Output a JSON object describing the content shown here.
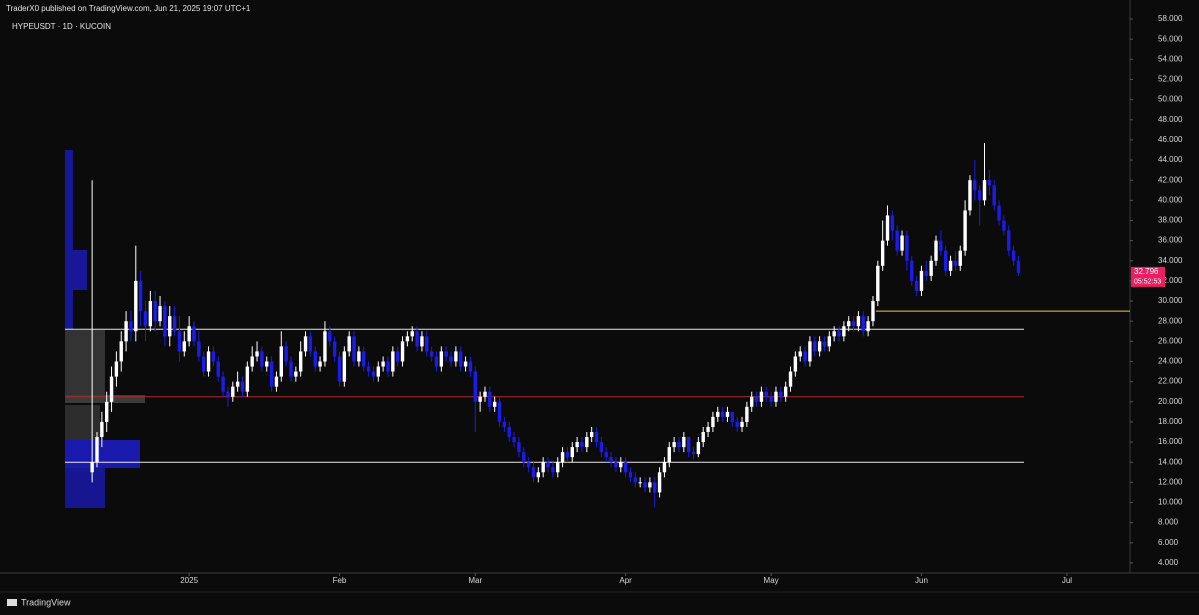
{
  "header": {
    "publisher": "TraderX0 published on TradingView.com, Jun 21, 2025 19:07 UTC+1"
  },
  "footer": {
    "brand": "TradingView"
  },
  "chart_data": {
    "type": "candlestick",
    "title": "HYPEUSDT · 1D · KUCOIN",
    "up_color": "#ffffff",
    "down_color": "#1c1ce8",
    "open": [
      13,
      14,
      16.5,
      18,
      20,
      22.5,
      24,
      26,
      28,
      27,
      32,
      29,
      27.5,
      30,
      28,
      29.5,
      26.5,
      28.5,
      27,
      25,
      26,
      27.5,
      26,
      24.5,
      23,
      25,
      24,
      22.5,
      21,
      20.5,
      21.5,
      22,
      21,
      23.5,
      24.5,
      25,
      23.5,
      24,
      21.5,
      22.5,
      25.5,
      24,
      22.5,
      23,
      25,
      26.5,
      25,
      23.5,
      24,
      27,
      26,
      24.5,
      22,
      25,
      26.5,
      24,
      25,
      23.5,
      23,
      22.5,
      23.5,
      24,
      23,
      25,
      24,
      26,
      26.5,
      27,
      25.5,
      26.5,
      25,
      24.5,
      23.5,
      25,
      24.5,
      24,
      25,
      23.5,
      24,
      23,
      20,
      20.5,
      21,
      19.5,
      20,
      18,
      17.5,
      16.5,
      16,
      15,
      14,
      13.5,
      12.5,
      13,
      14,
      13.5,
      13,
      14,
      15,
      14.5,
      15.5,
      16,
      15.5,
      16.5,
      17,
      16,
      15,
      14.5,
      14,
      13.5,
      14,
      13,
      12.5,
      12,
      12,
      11.5,
      12,
      11,
      13,
      14,
      15.5,
      16,
      15.5,
      16.5,
      15,
      14.8,
      16,
      17,
      17.5,
      18.5,
      19,
      18.5,
      19,
      18,
      17.5,
      18,
      19.5,
      20.5,
      20,
      21,
      20.5,
      20,
      21,
      20.5,
      21.5,
      23,
      24.5,
      25,
      24,
      26,
      25,
      26,
      25.5,
      26.5,
      27,
      26.5,
      27.5,
      28,
      27.5,
      28.5,
      27,
      28,
      30,
      33.5,
      36,
      38.5,
      37,
      35,
      36.5,
      34,
      32,
      31,
      33,
      32.5,
      34,
      36,
      35,
      33,
      34,
      33.5,
      35,
      39,
      42,
      41,
      40,
      42,
      41.5,
      39.5,
      38,
      37,
      35,
      34
    ],
    "high": [
      42,
      17,
      19,
      21,
      23.5,
      25,
      27,
      29,
      29,
      35.5,
      33,
      30,
      31,
      31,
      30.5,
      30,
      29.5,
      29.5,
      28.5,
      27,
      28.5,
      28,
      27,
      25,
      25.5,
      25.5,
      24.5,
      23,
      21.5,
      22,
      23,
      22.5,
      24,
      25.5,
      26,
      25.5,
      24.5,
      24.5,
      23,
      27,
      26,
      24.5,
      23.5,
      26,
      27,
      27,
      25.5,
      24.5,
      28,
      27.5,
      26.5,
      25,
      25.5,
      27,
      27,
      25.5,
      25.5,
      24,
      23.5,
      24,
      24.5,
      24.5,
      25.5,
      25.5,
      26.5,
      27,
      27.5,
      27.5,
      27,
      27,
      25.5,
      25,
      25.5,
      25.5,
      25,
      25.5,
      25.5,
      24.5,
      24.5,
      23.5,
      21,
      21.5,
      21.5,
      20.5,
      20.5,
      18.5,
      18,
      17,
      16.5,
      15.5,
      14.5,
      14,
      13.5,
      14.5,
      14.5,
      14,
      14.5,
      15.5,
      15.5,
      16,
      16.5,
      16.5,
      17,
      17.5,
      17.5,
      16.5,
      15.5,
      15,
      14.5,
      14.5,
      14.5,
      13.5,
      13,
      12.5,
      12.5,
      12.5,
      12.5,
      13.5,
      14.5,
      16,
      16.5,
      16.5,
      17,
      16.5,
      15.5,
      16.5,
      17.5,
      18,
      19,
      19.5,
      19.5,
      19.5,
      19,
      18.5,
      18.5,
      20,
      21,
      21,
      21.5,
      21.5,
      21,
      21.5,
      21.5,
      22,
      23.5,
      25,
      25.5,
      25.5,
      26.5,
      26.5,
      26.5,
      26.5,
      27,
      27.5,
      27.5,
      28,
      28.5,
      28.5,
      29,
      29,
      28.5,
      30.5,
      34,
      38,
      39.5,
      39,
      37.5,
      37,
      37,
      34.5,
      32.5,
      33.5,
      34,
      34.5,
      36.5,
      37,
      35.5,
      34.5,
      35,
      35.5,
      40,
      42.5,
      44,
      41.5,
      45.7,
      43,
      42,
      40,
      38.5,
      37.5,
      35.5,
      34.5
    ],
    "low": [
      12,
      13.5,
      15.5,
      17,
      19,
      21.5,
      23,
      25,
      26,
      26,
      27.5,
      26,
      27,
      27,
      27.5,
      25.5,
      25.5,
      26.5,
      24,
      24.5,
      25.5,
      25.5,
      24,
      22.5,
      22.5,
      23.5,
      22,
      20.5,
      19.5,
      20,
      21,
      20.5,
      20.5,
      23,
      24,
      23,
      23,
      21,
      21,
      22,
      23.5,
      22,
      22,
      22.5,
      24.5,
      24.5,
      23,
      23,
      23.5,
      25.5,
      24,
      21.5,
      21.5,
      24.5,
      23.5,
      23.5,
      23,
      22.5,
      22,
      22,
      23,
      22.5,
      22.5,
      23.5,
      23.5,
      25.5,
      26,
      25,
      25,
      24.5,
      24,
      23,
      23,
      24,
      23.5,
      23.5,
      23,
      23,
      22.5,
      17,
      19,
      20,
      19,
      19,
      17.5,
      17,
      16,
      15.5,
      14.5,
      13.5,
      13,
      12,
      12,
      12.5,
      13,
      12.5,
      12.5,
      13.5,
      14,
      14,
      15,
      15,
      15,
      16,
      15.5,
      14.5,
      14,
      13.5,
      13,
      13,
      12.5,
      12,
      11.5,
      11.5,
      11,
      11,
      9.5,
      10.5,
      12.5,
      13.5,
      15,
      15,
      15,
      14.5,
      14.3,
      14.5,
      15.5,
      16.5,
      17,
      18,
      18,
      18,
      17.5,
      17,
      17,
      17.5,
      19,
      19.5,
      19.5,
      20,
      19.5,
      19.5,
      20,
      20,
      21,
      22.5,
      24,
      23.5,
      23.5,
      24.5,
      24.5,
      25,
      25,
      26,
      26,
      26,
      27,
      27,
      27,
      26.5,
      26.5,
      27.5,
      29.5,
      33,
      35.5,
      36,
      34.5,
      34.5,
      33,
      31.5,
      30.5,
      30.5,
      32,
      32,
      33.5,
      34.5,
      32.5,
      32.5,
      33,
      33,
      34.5,
      38.5,
      40,
      37.5,
      39.5,
      40.5,
      39,
      37.5,
      36.5,
      34.5,
      33.5,
      32.5
    ],
    "close": [
      14,
      16.5,
      18,
      20,
      22.5,
      24,
      26,
      28,
      27,
      32,
      29,
      27.5,
      30,
      28,
      29.5,
      26.5,
      28.5,
      27,
      25,
      26,
      27.5,
      26,
      24.5,
      23,
      25,
      24,
      22.5,
      21,
      20.5,
      21.5,
      22,
      21,
      23.5,
      24.5,
      25,
      23.5,
      24,
      21.5,
      22.5,
      25.5,
      24,
      22.5,
      23,
      25,
      26.5,
      25,
      23.5,
      24,
      27,
      26,
      24.5,
      22,
      25,
      26.5,
      24,
      25,
      23.5,
      23,
      22.5,
      23.5,
      24,
      23,
      25,
      24,
      26,
      26.5,
      27,
      25.5,
      26.5,
      25,
      24.5,
      23.5,
      25,
      24.5,
      24,
      25,
      23.5,
      24,
      23,
      20,
      20.5,
      21,
      19.5,
      20,
      18,
      17.5,
      16.5,
      16,
      15,
      14,
      13.5,
      12.5,
      13,
      14,
      13.5,
      13,
      14,
      15,
      14.5,
      15.5,
      16,
      15.5,
      16.5,
      17,
      16,
      15,
      14.5,
      14,
      13.5,
      14,
      13,
      12.5,
      12,
      12,
      11.5,
      12,
      11,
      13,
      14,
      15.5,
      16,
      15.5,
      16.5,
      15,
      14.8,
      16,
      17,
      17.5,
      18.5,
      19,
      18.5,
      19,
      18,
      17.5,
      18,
      19.5,
      20.5,
      20,
      21,
      20.5,
      20,
      21,
      20.5,
      21.5,
      23,
      24.5,
      25,
      24,
      26,
      25,
      26,
      25.5,
      26.5,
      27,
      26.5,
      27.5,
      28,
      27.5,
      28.5,
      27,
      28,
      30,
      33.5,
      36,
      38.5,
      37,
      35,
      36.5,
      34,
      32,
      31,
      33,
      32.5,
      34,
      36,
      35,
      33,
      34,
      33.5,
      35,
      39,
      42,
      41,
      40,
      42,
      41.5,
      39.5,
      38,
      37,
      35,
      34,
      32.796
    ],
    "last_price": "32.796",
    "countdown": "05:52:53",
    "last_price_color": "#e91e63",
    "levels": [
      {
        "value": 27.2,
        "color": "#e8e8e8"
      },
      {
        "value": 29,
        "color": "#f5c451"
      },
      {
        "value": 20.5,
        "color": "#b02a2a"
      },
      {
        "value": 14,
        "color": "#e8e8e8"
      }
    ],
    "xlim": [
      -19,
      214
    ],
    "xticks": [
      {
        "value": 20,
        "label": "2025"
      },
      {
        "value": 51,
        "label": "Feb"
      },
      {
        "value": 79,
        "label": "Mar"
      },
      {
        "value": 110,
        "label": "Apr"
      },
      {
        "value": 140,
        "label": "May"
      },
      {
        "value": 171,
        "label": "Jun"
      },
      {
        "value": 201,
        "label": "Jul"
      }
    ],
    "ylim": [
      3,
      58.6
    ],
    "yticks": [
      {
        "value": 4,
        "label": "4.000"
      },
      {
        "value": 6,
        "label": "6.000"
      },
      {
        "value": 8,
        "label": "8.000"
      },
      {
        "value": 10,
        "label": "10.000"
      },
      {
        "value": 12,
        "label": "12.000"
      },
      {
        "value": 14,
        "label": "14.000"
      },
      {
        "value": 16,
        "label": "16.000"
      },
      {
        "value": 18,
        "label": "18.000"
      },
      {
        "value": 20,
        "label": "20.000"
      },
      {
        "value": 22,
        "label": "22.000"
      },
      {
        "value": 24,
        "label": "24.000"
      },
      {
        "value": 26,
        "label": "26.000"
      },
      {
        "value": 28,
        "label": "28.000"
      },
      {
        "value": 30,
        "label": "30.000"
      },
      {
        "value": 32,
        "label": "32.000"
      },
      {
        "value": 34,
        "label": "34.000"
      },
      {
        "value": 36,
        "label": "36.000"
      },
      {
        "value": 38,
        "label": "38.000"
      },
      {
        "value": 40,
        "label": "40.000"
      },
      {
        "value": 42,
        "label": "42.000"
      },
      {
        "value": 44,
        "label": "44.000"
      },
      {
        "value": 46,
        "label": "46.000"
      },
      {
        "value": 48,
        "label": "48.000"
      },
      {
        "value": 50,
        "label": "50.000"
      },
      {
        "value": 52,
        "label": "52.000"
      },
      {
        "value": 54,
        "label": "54.000"
      },
      {
        "value": 56,
        "label": "56.000"
      },
      {
        "value": 58,
        "label": "58.000"
      }
    ]
  }
}
